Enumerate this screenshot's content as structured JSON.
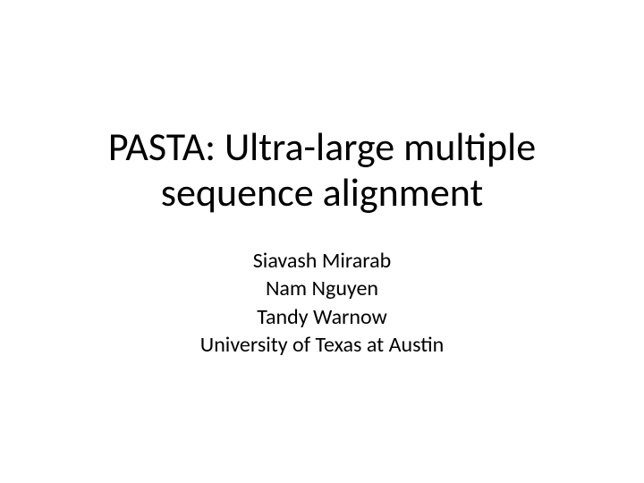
{
  "slide": {
    "title": "PASTA: Ultra-large multiple sequence alignment",
    "authors": [
      "Siavash Mirarab",
      "Nam Nguyen",
      "Tandy Warnow",
      "University of Texas at Austin"
    ],
    "background_color": "#ffffff",
    "title_color": "#000000",
    "title_fontsize": 44,
    "title_fontweight": 400,
    "author_color": "#000000",
    "author_fontsize": 24,
    "author_fontweight": 400,
    "font_family": "Calibri"
  }
}
